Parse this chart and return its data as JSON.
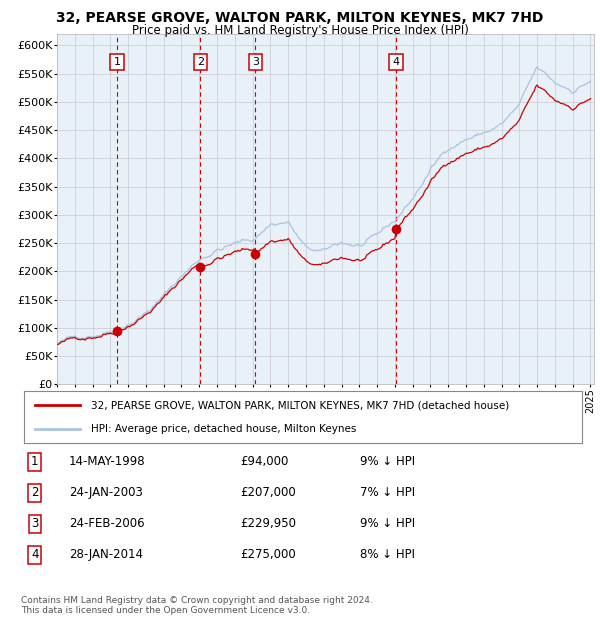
{
  "title": "32, PEARSE GROVE, WALTON PARK, MILTON KEYNES, MK7 7HD",
  "subtitle": "Price paid vs. HM Land Registry's House Price Index (HPI)",
  "sale_year_nums": [
    1998.37,
    2003.07,
    2006.15,
    2014.07
  ],
  "sale_prices": [
    94000,
    207000,
    229950,
    275000
  ],
  "sale_labels": [
    "1",
    "2",
    "3",
    "4"
  ],
  "sale_pct": [
    "9% ↓ HPI",
    "7% ↓ HPI",
    "9% ↓ HPI",
    "8% ↓ HPI"
  ],
  "sale_date_strs": [
    "14-MAY-1998",
    "24-JAN-2003",
    "24-FEB-2006",
    "28-JAN-2014"
  ],
  "sale_price_strs": [
    "£94,000",
    "£207,000",
    "£229,950",
    "£275,000"
  ],
  "legend_red": "32, PEARSE GROVE, WALTON PARK, MILTON KEYNES, MK7 7HD (detached house)",
  "legend_blue": "HPI: Average price, detached house, Milton Keynes",
  "footer": "Contains HM Land Registry data © Crown copyright and database right 2024.\nThis data is licensed under the Open Government Licence v3.0.",
  "hpi_color": "#aac4e0",
  "sale_color": "#cc0000",
  "background_color": "#e8f0f8",
  "ylim": [
    0,
    620000
  ],
  "yticks": [
    0,
    50000,
    100000,
    150000,
    200000,
    250000,
    300000,
    350000,
    400000,
    450000,
    500000,
    550000,
    600000
  ]
}
